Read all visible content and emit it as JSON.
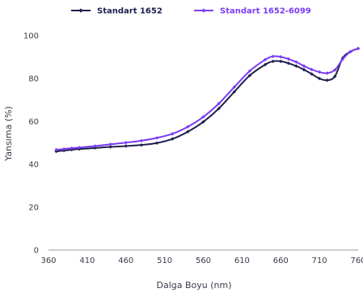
{
  "chart_data": {
    "type": "line",
    "xlabel": "Dalga Boyu (nm)",
    "ylabel": "Yansıma (%)",
    "xlim": [
      360,
      760
    ],
    "ylim": [
      0,
      100
    ],
    "x_ticks": [
      360,
      410,
      460,
      510,
      560,
      610,
      660,
      710,
      760
    ],
    "y_ticks": [
      0,
      20,
      40,
      60,
      80,
      100
    ],
    "grid": false,
    "legend_position": "top",
    "series": [
      {
        "name": "Standart 1652",
        "color": "#1f1f4f",
        "marker": "diamond",
        "x": [
          370,
          380,
          390,
          400,
          420,
          440,
          460,
          480,
          500,
          520,
          540,
          560,
          580,
          600,
          620,
          640,
          650,
          660,
          670,
          680,
          690,
          700,
          710,
          720,
          730,
          740,
          750,
          760
        ],
        "y": [
          46.0,
          46.4,
          46.8,
          47.1,
          47.6,
          48.1,
          48.5,
          49.0,
          49.9,
          51.8,
          55.2,
          59.8,
          66.0,
          73.8,
          81.4,
          86.5,
          88.0,
          88.0,
          87.1,
          85.8,
          84.1,
          82.1,
          80.0,
          79.2,
          81.0,
          89.5,
          92.5,
          94.0
        ]
      },
      {
        "name": "Standart 1652-6099",
        "color": "#7a3cf5",
        "marker": "diamond",
        "x": [
          370,
          380,
          390,
          400,
          420,
          440,
          460,
          480,
          500,
          520,
          540,
          560,
          580,
          600,
          620,
          640,
          650,
          660,
          670,
          680,
          690,
          700,
          710,
          720,
          730,
          740,
          750,
          760
        ],
        "y": [
          46.8,
          47.1,
          47.5,
          47.8,
          48.5,
          49.3,
          50.1,
          51.0,
          52.3,
          54.2,
          57.5,
          62.1,
          68.3,
          76.0,
          83.5,
          88.8,
          90.3,
          90.1,
          89.1,
          87.7,
          85.8,
          84.2,
          83.0,
          82.5,
          84.0,
          89.0,
          92.5,
          94.0
        ]
      }
    ]
  }
}
